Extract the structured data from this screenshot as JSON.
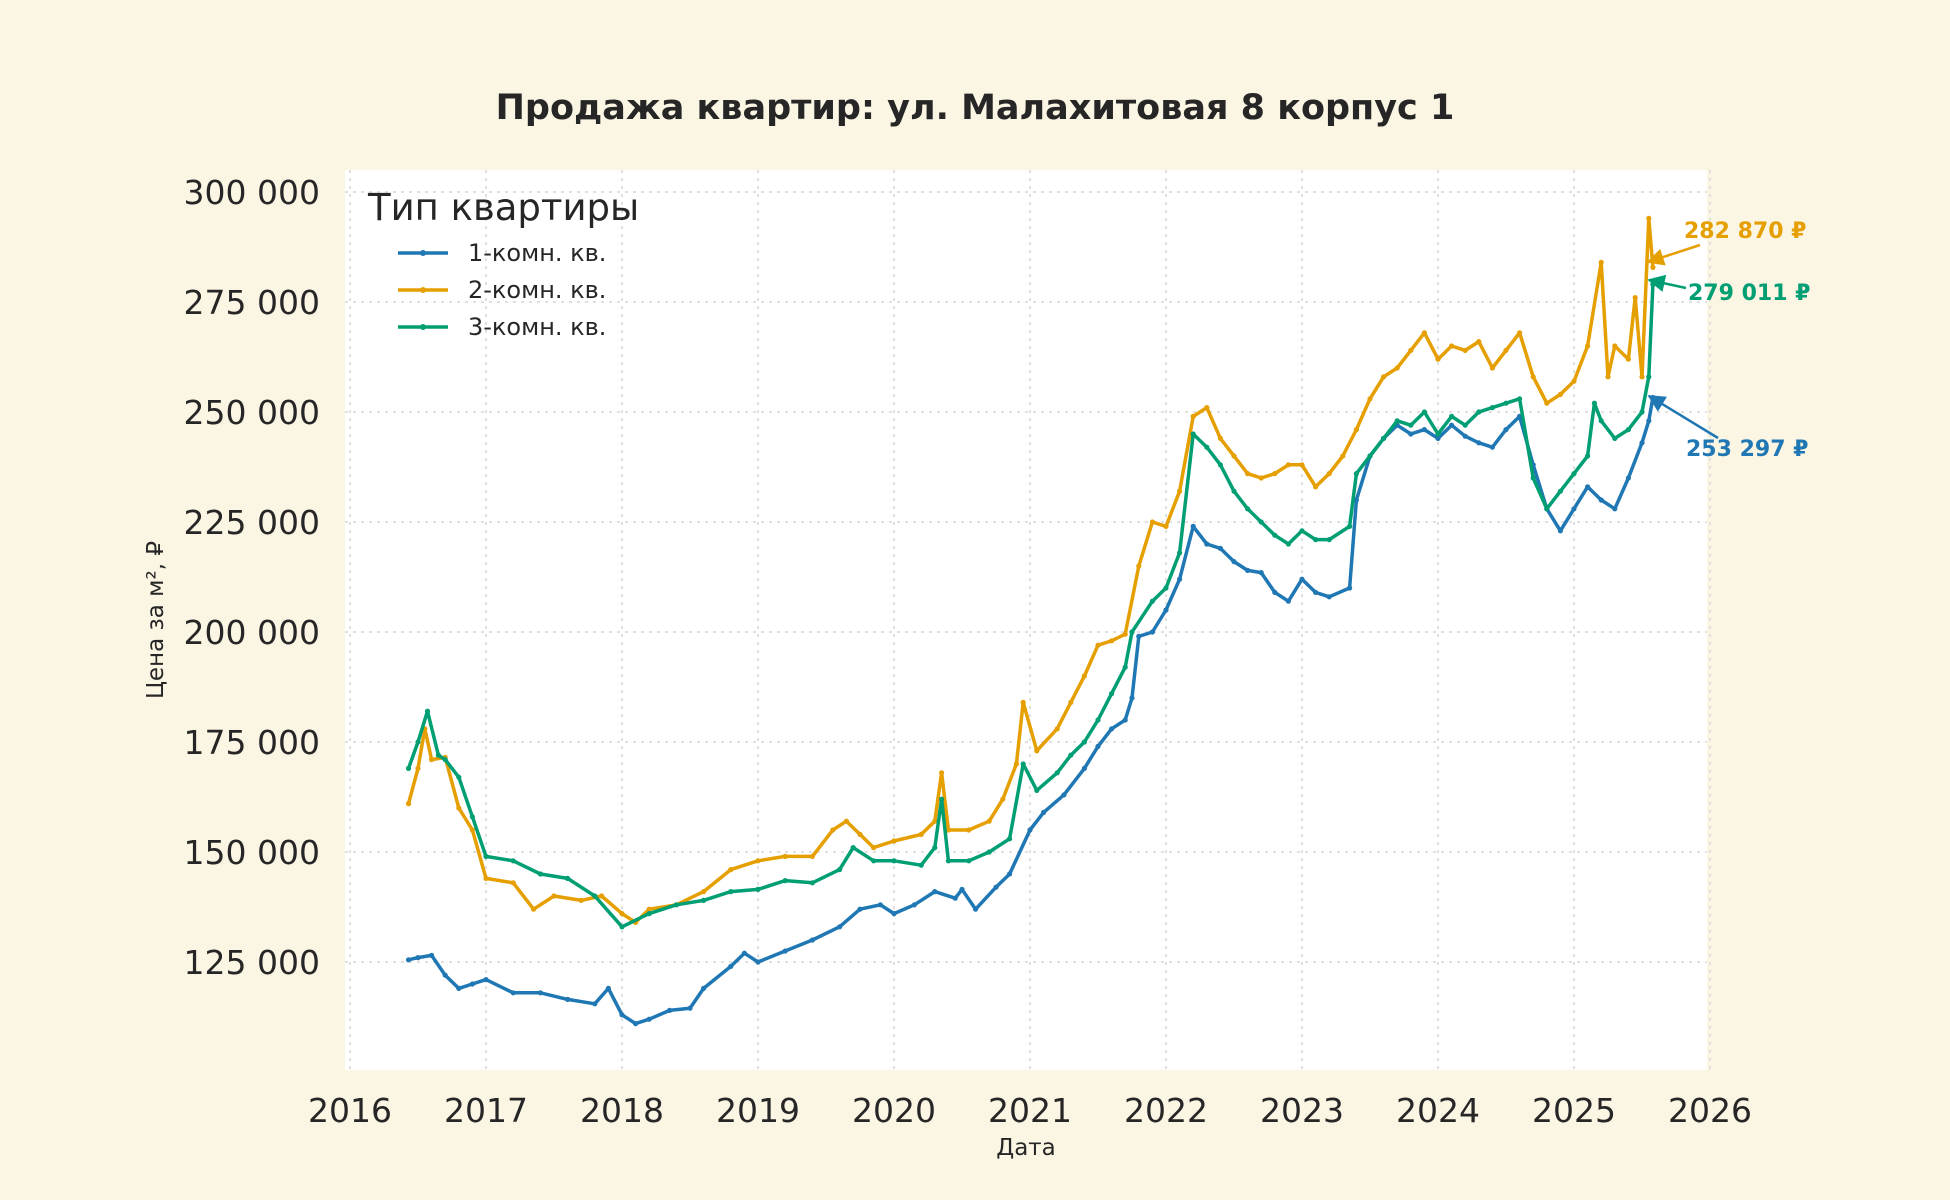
{
  "chart_data": {
    "type": "line",
    "title": "Продажа квартир: ул. Малахитовая 8 корпус 1",
    "xlabel": "Дата",
    "ylabel": "Цена за м², ₽",
    "xlim": [
      2016.0,
      2026.0
    ],
    "ylim": [
      100000,
      305000
    ],
    "x_ticks": [
      2016,
      2017,
      2018,
      2019,
      2020,
      2021,
      2022,
      2023,
      2024,
      2025,
      2026
    ],
    "x_tick_labels": [
      "2016",
      "2017",
      "2018",
      "2019",
      "2020",
      "2021",
      "2022",
      "2023",
      "2024",
      "2025",
      "2026"
    ],
    "y_ticks": [
      125000,
      150000,
      175000,
      200000,
      225000,
      250000,
      275000,
      300000
    ],
    "y_tick_labels": [
      "125 000",
      "150 000",
      "175 000",
      "200 000",
      "225 000",
      "250 000",
      "275 000",
      "300 000"
    ],
    "grid": true,
    "legend": {
      "title": "Тип квартиры",
      "position": "top-left"
    },
    "series": [
      {
        "name": "1-комн. кв.",
        "color": "#1f77b4",
        "points": [
          [
            2016.43,
            125500
          ],
          [
            2016.5,
            126000
          ],
          [
            2016.6,
            126500
          ],
          [
            2016.7,
            122000
          ],
          [
            2016.8,
            119000
          ],
          [
            2016.9,
            120000
          ],
          [
            2017.0,
            121000
          ],
          [
            2017.2,
            118000
          ],
          [
            2017.4,
            118000
          ],
          [
            2017.6,
            116500
          ],
          [
            2017.8,
            115500
          ],
          [
            2017.9,
            119000
          ],
          [
            2018.0,
            113000
          ],
          [
            2018.1,
            111000
          ],
          [
            2018.2,
            112000
          ],
          [
            2018.35,
            114000
          ],
          [
            2018.5,
            114500
          ],
          [
            2018.6,
            119000
          ],
          [
            2018.8,
            124000
          ],
          [
            2018.9,
            127000
          ],
          [
            2019.0,
            125000
          ],
          [
            2019.2,
            127500
          ],
          [
            2019.4,
            130000
          ],
          [
            2019.6,
            133000
          ],
          [
            2019.75,
            137000
          ],
          [
            2019.9,
            138000
          ],
          [
            2020.0,
            136000
          ],
          [
            2020.15,
            138000
          ],
          [
            2020.3,
            141000
          ],
          [
            2020.45,
            139500
          ],
          [
            2020.5,
            141500
          ],
          [
            2020.6,
            137000
          ],
          [
            2020.75,
            142000
          ],
          [
            2020.85,
            145000
          ],
          [
            2021.0,
            155000
          ],
          [
            2021.1,
            159000
          ],
          [
            2021.25,
            163000
          ],
          [
            2021.4,
            169000
          ],
          [
            2021.5,
            174000
          ],
          [
            2021.6,
            178000
          ],
          [
            2021.7,
            180000
          ],
          [
            2021.75,
            185000
          ],
          [
            2021.8,
            199000
          ],
          [
            2021.9,
            200000
          ],
          [
            2022.0,
            205000
          ],
          [
            2022.1,
            212000
          ],
          [
            2022.2,
            224000
          ],
          [
            2022.3,
            220000
          ],
          [
            2022.4,
            219000
          ],
          [
            2022.5,
            216000
          ],
          [
            2022.6,
            214000
          ],
          [
            2022.7,
            213500
          ],
          [
            2022.8,
            209000
          ],
          [
            2022.9,
            207000
          ],
          [
            2023.0,
            212000
          ],
          [
            2023.1,
            209000
          ],
          [
            2023.2,
            208000
          ],
          [
            2023.35,
            210000
          ],
          [
            2023.4,
            230000
          ],
          [
            2023.5,
            240000
          ],
          [
            2023.6,
            244000
          ],
          [
            2023.7,
            247000
          ],
          [
            2023.8,
            245000
          ],
          [
            2023.9,
            246000
          ],
          [
            2024.0,
            244000
          ],
          [
            2024.1,
            247000
          ],
          [
            2024.2,
            244500
          ],
          [
            2024.3,
            243000
          ],
          [
            2024.4,
            242000
          ],
          [
            2024.5,
            246000
          ],
          [
            2024.6,
            249000
          ],
          [
            2024.7,
            238000
          ],
          [
            2024.8,
            228000
          ],
          [
            2024.9,
            223000
          ],
          [
            2025.0,
            228000
          ],
          [
            2025.1,
            233000
          ],
          [
            2025.2,
            230000
          ],
          [
            2025.3,
            228000
          ],
          [
            2025.4,
            235000
          ],
          [
            2025.5,
            243000
          ],
          [
            2025.55,
            248000
          ],
          [
            2025.58,
            253297
          ]
        ]
      },
      {
        "name": "2-комн. кв.",
        "color": "#e69f00",
        "points": [
          [
            2016.43,
            161000
          ],
          [
            2016.5,
            169000
          ],
          [
            2016.55,
            178000
          ],
          [
            2016.6,
            171000
          ],
          [
            2016.7,
            171500
          ],
          [
            2016.8,
            160000
          ],
          [
            2016.9,
            155000
          ],
          [
            2017.0,
            144000
          ],
          [
            2017.2,
            143000
          ],
          [
            2017.35,
            137000
          ],
          [
            2017.5,
            140000
          ],
          [
            2017.7,
            139000
          ],
          [
            2017.85,
            140000
          ],
          [
            2018.0,
            136000
          ],
          [
            2018.1,
            134000
          ],
          [
            2018.2,
            137000
          ],
          [
            2018.4,
            138000
          ],
          [
            2018.6,
            141000
          ],
          [
            2018.8,
            146000
          ],
          [
            2019.0,
            148000
          ],
          [
            2019.2,
            149000
          ],
          [
            2019.4,
            149000
          ],
          [
            2019.55,
            155000
          ],
          [
            2019.65,
            157000
          ],
          [
            2019.75,
            154000
          ],
          [
            2019.85,
            151000
          ],
          [
            2020.0,
            152500
          ],
          [
            2020.2,
            154000
          ],
          [
            2020.3,
            157000
          ],
          [
            2020.35,
            168000
          ],
          [
            2020.4,
            155000
          ],
          [
            2020.55,
            155000
          ],
          [
            2020.7,
            157000
          ],
          [
            2020.8,
            162000
          ],
          [
            2020.9,
            170000
          ],
          [
            2020.95,
            184000
          ],
          [
            2021.05,
            173000
          ],
          [
            2021.2,
            178000
          ],
          [
            2021.3,
            184000
          ],
          [
            2021.4,
            190000
          ],
          [
            2021.5,
            197000
          ],
          [
            2021.6,
            198000
          ],
          [
            2021.7,
            199500
          ],
          [
            2021.8,
            215000
          ],
          [
            2021.9,
            225000
          ],
          [
            2022.0,
            224000
          ],
          [
            2022.1,
            232000
          ],
          [
            2022.2,
            249000
          ],
          [
            2022.3,
            251000
          ],
          [
            2022.4,
            244000
          ],
          [
            2022.5,
            240000
          ],
          [
            2022.6,
            236000
          ],
          [
            2022.7,
            235000
          ],
          [
            2022.8,
            236000
          ],
          [
            2022.9,
            238000
          ],
          [
            2023.0,
            238000
          ],
          [
            2023.1,
            233000
          ],
          [
            2023.2,
            236000
          ],
          [
            2023.3,
            240000
          ],
          [
            2023.4,
            246000
          ],
          [
            2023.5,
            253000
          ],
          [
            2023.6,
            258000
          ],
          [
            2023.7,
            260000
          ],
          [
            2023.8,
            264000
          ],
          [
            2023.9,
            268000
          ],
          [
            2024.0,
            262000
          ],
          [
            2024.1,
            265000
          ],
          [
            2024.2,
            264000
          ],
          [
            2024.3,
            266000
          ],
          [
            2024.4,
            260000
          ],
          [
            2024.5,
            264000
          ],
          [
            2024.6,
            268000
          ],
          [
            2024.7,
            258000
          ],
          [
            2024.8,
            252000
          ],
          [
            2024.9,
            254000
          ],
          [
            2025.0,
            257000
          ],
          [
            2025.1,
            265000
          ],
          [
            2025.2,
            284000
          ],
          [
            2025.25,
            258000
          ],
          [
            2025.3,
            265000
          ],
          [
            2025.4,
            262000
          ],
          [
            2025.45,
            276000
          ],
          [
            2025.5,
            258000
          ],
          [
            2025.55,
            294000
          ],
          [
            2025.58,
            282870
          ]
        ]
      },
      {
        "name": "3-комн. кв.",
        "color": "#009e73",
        "points": [
          [
            2016.43,
            169000
          ],
          [
            2016.5,
            175000
          ],
          [
            2016.57,
            182000
          ],
          [
            2016.65,
            172000
          ],
          [
            2016.7,
            171000
          ],
          [
            2016.8,
            167000
          ],
          [
            2016.9,
            158000
          ],
          [
            2017.0,
            149000
          ],
          [
            2017.2,
            148000
          ],
          [
            2017.4,
            145000
          ],
          [
            2017.6,
            144000
          ],
          [
            2017.8,
            140000
          ],
          [
            2018.0,
            133000
          ],
          [
            2018.2,
            136000
          ],
          [
            2018.4,
            138000
          ],
          [
            2018.6,
            139000
          ],
          [
            2018.8,
            141000
          ],
          [
            2019.0,
            141500
          ],
          [
            2019.2,
            143500
          ],
          [
            2019.4,
            143000
          ],
          [
            2019.6,
            146000
          ],
          [
            2019.7,
            151000
          ],
          [
            2019.85,
            148000
          ],
          [
            2020.0,
            148000
          ],
          [
            2020.2,
            147000
          ],
          [
            2020.3,
            151000
          ],
          [
            2020.35,
            162000
          ],
          [
            2020.4,
            148000
          ],
          [
            2020.55,
            148000
          ],
          [
            2020.7,
            150000
          ],
          [
            2020.85,
            153000
          ],
          [
            2020.95,
            170000
          ],
          [
            2021.05,
            164000
          ],
          [
            2021.2,
            168000
          ],
          [
            2021.3,
            172000
          ],
          [
            2021.4,
            175000
          ],
          [
            2021.5,
            180000
          ],
          [
            2021.6,
            186000
          ],
          [
            2021.7,
            192000
          ],
          [
            2021.75,
            200000
          ],
          [
            2021.9,
            207000
          ],
          [
            2022.0,
            210000
          ],
          [
            2022.1,
            218000
          ],
          [
            2022.2,
            245000
          ],
          [
            2022.3,
            242000
          ],
          [
            2022.4,
            238000
          ],
          [
            2022.5,
            232000
          ],
          [
            2022.6,
            228000
          ],
          [
            2022.7,
            225000
          ],
          [
            2022.8,
            222000
          ],
          [
            2022.9,
            220000
          ],
          [
            2023.0,
            223000
          ],
          [
            2023.1,
            221000
          ],
          [
            2023.2,
            221000
          ],
          [
            2023.35,
            224000
          ],
          [
            2023.4,
            236000
          ],
          [
            2023.5,
            240000
          ],
          [
            2023.6,
            244000
          ],
          [
            2023.7,
            248000
          ],
          [
            2023.8,
            247000
          ],
          [
            2023.9,
            250000
          ],
          [
            2024.0,
            245000
          ],
          [
            2024.1,
            249000
          ],
          [
            2024.2,
            247000
          ],
          [
            2024.3,
            250000
          ],
          [
            2024.4,
            251000
          ],
          [
            2024.5,
            252000
          ],
          [
            2024.6,
            253000
          ],
          [
            2024.7,
            235000
          ],
          [
            2024.8,
            228000
          ],
          [
            2024.9,
            232000
          ],
          [
            2025.0,
            236000
          ],
          [
            2025.1,
            240000
          ],
          [
            2025.15,
            252000
          ],
          [
            2025.2,
            248000
          ],
          [
            2025.3,
            244000
          ],
          [
            2025.4,
            246000
          ],
          [
            2025.5,
            250000
          ],
          [
            2025.55,
            258000
          ],
          [
            2025.58,
            279011
          ]
        ]
      }
    ],
    "annotations": [
      {
        "text": "282 870 ₽",
        "series": "2-комн. кв.",
        "x": 2025.58,
        "y": 282870
      },
      {
        "text": "279 011 ₽",
        "series": "3-комн. кв.",
        "x": 2025.58,
        "y": 279011
      },
      {
        "text": "253 297 ₽",
        "series": "1-комн. кв.",
        "x": 2025.58,
        "y": 253297
      }
    ]
  }
}
